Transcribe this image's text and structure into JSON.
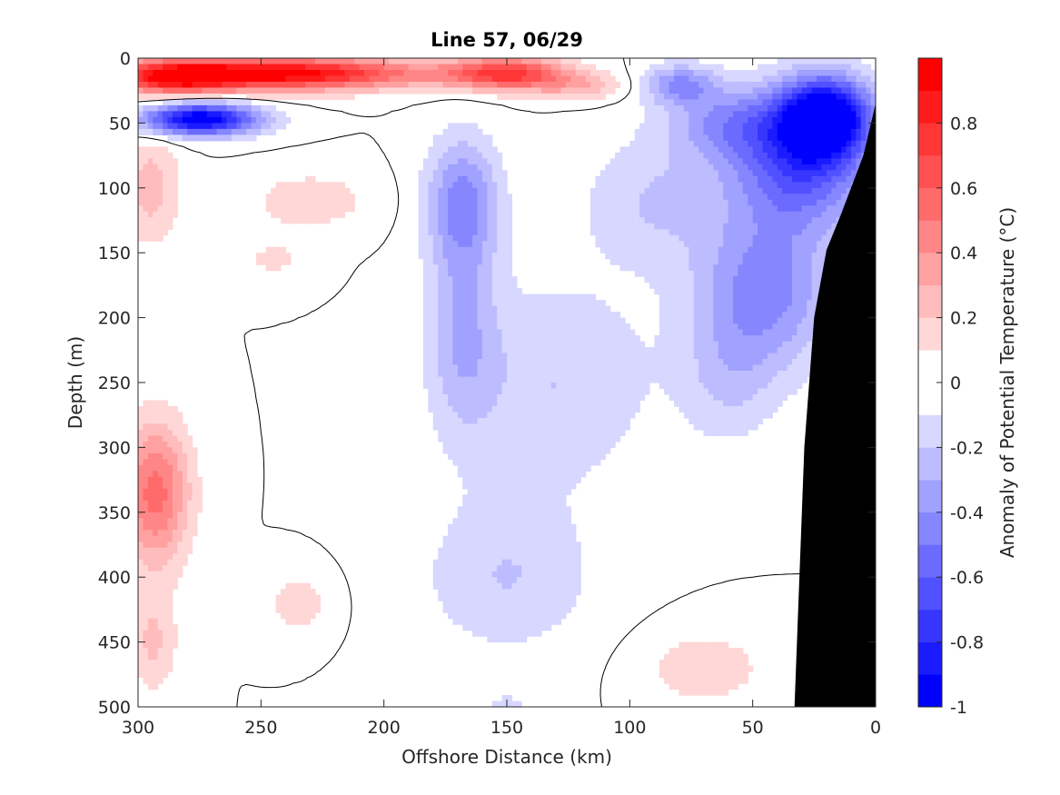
{
  "chart_data": {
    "type": "contour",
    "title": "Line 57, 06/29",
    "xlabel": "Offshore Distance (km)",
    "ylabel": "Depth (m)",
    "colorbar_label": "Anomaly of Potential Temperature (°C)",
    "xlim": [
      300,
      0
    ],
    "ylim": [
      500,
      0
    ],
    "x_reversed": true,
    "y_reversed": true,
    "xticks": [
      300,
      250,
      200,
      150,
      100,
      50,
      0
    ],
    "yticks": [
      0,
      50,
      100,
      150,
      200,
      250,
      300,
      350,
      400,
      450,
      500
    ],
    "clim": [
      -1,
      1
    ],
    "colorbar_ticks": [
      0.8,
      0.6,
      0.4,
      0.2,
      0,
      -0.2,
      -0.4,
      -0.6,
      -0.8,
      -1
    ],
    "colorbar_tick_labels": [
      "0.8",
      "0.6",
      "0.4",
      "0.2",
      "0",
      "-0.2",
      "-0.4",
      "-0.6",
      "-0.8",
      "-1"
    ],
    "levels": [
      -1,
      -0.9,
      -0.8,
      -0.7,
      -0.6,
      -0.5,
      -0.4,
      -0.3,
      -0.2,
      -0.1,
      0.1,
      0.2,
      0.3,
      0.4,
      0.5,
      0.6,
      0.7,
      0.8,
      0.9,
      1
    ],
    "colormap": {
      "negative": "#0000ff",
      "neutral": "#ffffff",
      "positive": "#ff0000"
    },
    "zero_contour": true,
    "bathymetry_color": "#000000",
    "bathymetry": [
      [
        33,
        500
      ],
      [
        31,
        400
      ],
      [
        29,
        300
      ],
      [
        25,
        200
      ],
      [
        20,
        148
      ],
      [
        14,
        120
      ],
      [
        5,
        75
      ],
      [
        0,
        35
      ],
      [
        0,
        500
      ]
    ],
    "anomaly_features": [
      {
        "x": 240,
        "y": 12,
        "value": 1.0,
        "sx": 55,
        "sy": 12
      },
      {
        "x": 285,
        "y": 15,
        "value": 0.7,
        "sx": 25,
        "sy": 13
      },
      {
        "x": 150,
        "y": 12,
        "value": 0.75,
        "sx": 25,
        "sy": 12
      },
      {
        "x": 120,
        "y": 22,
        "value": 0.25,
        "sx": 20,
        "sy": 10
      },
      {
        "x": 275,
        "y": 47,
        "value": -1.05,
        "sx": 24,
        "sy": 12
      },
      {
        "x": 295,
        "y": 100,
        "value": 0.25,
        "sx": 12,
        "sy": 45
      },
      {
        "x": 293,
        "y": 335,
        "value": 0.55,
        "sx": 14,
        "sy": 55
      },
      {
        "x": 294,
        "y": 450,
        "value": 0.22,
        "sx": 10,
        "sy": 40
      },
      {
        "x": 230,
        "y": 110,
        "value": 0.18,
        "sx": 25,
        "sy": 22
      },
      {
        "x": 245,
        "y": 155,
        "value": 0.12,
        "sx": 15,
        "sy": 18
      },
      {
        "x": 235,
        "y": 420,
        "value": 0.18,
        "sx": 12,
        "sy": 22
      },
      {
        "x": 70,
        "y": 470,
        "value": 0.18,
        "sx": 25,
        "sy": 28
      },
      {
        "x": 168,
        "y": 110,
        "value": -0.42,
        "sx": 15,
        "sy": 50
      },
      {
        "x": 168,
        "y": 210,
        "value": -0.27,
        "sx": 14,
        "sy": 80
      },
      {
        "x": 150,
        "y": 400,
        "value": -0.2,
        "sx": 35,
        "sy": 60
      },
      {
        "x": 130,
        "y": 250,
        "value": -0.2,
        "sx": 40,
        "sy": 80
      },
      {
        "x": 90,
        "y": 110,
        "value": -0.2,
        "sx": 30,
        "sy": 50
      },
      {
        "x": 60,
        "y": 250,
        "value": -0.17,
        "sx": 20,
        "sy": 50
      },
      {
        "x": 20,
        "y": 45,
        "value": -1.0,
        "sx": 18,
        "sy": 30
      },
      {
        "x": 30,
        "y": 80,
        "value": -0.65,
        "sx": 28,
        "sy": 50
      },
      {
        "x": 45,
        "y": 180,
        "value": -0.45,
        "sx": 28,
        "sy": 60
      },
      {
        "x": 60,
        "y": 50,
        "value": -0.35,
        "sx": 25,
        "sy": 28
      },
      {
        "x": 80,
        "y": 20,
        "value": -0.4,
        "sx": 15,
        "sy": 15
      },
      {
        "x": 150,
        "y": 500,
        "value": -0.12,
        "sx": 12,
        "sy": 12
      }
    ]
  }
}
